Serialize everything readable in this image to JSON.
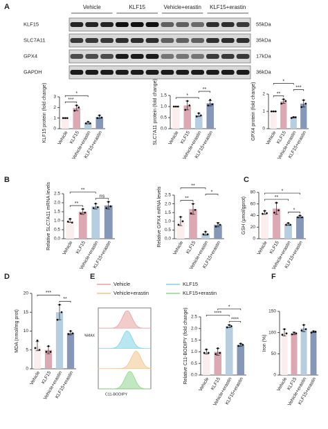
{
  "panel_labels": [
    "A",
    "B",
    "C",
    "D",
    "E",
    "F"
  ],
  "blot": {
    "groups": [
      "Vehicle",
      "KLF15",
      "Vehicle+erastin",
      "KLF15+erastin"
    ],
    "rows": [
      {
        "label": "KLF15",
        "size": "55kDa"
      },
      {
        "label": "SLC7A11",
        "size": "35kDa"
      },
      {
        "label": "GPX4",
        "size": "17kDa"
      },
      {
        "label": "GAPDH",
        "size": "36kDa"
      }
    ]
  },
  "flow": {
    "ylabel": "%MAX",
    "xlabel": "C11-BODIPY",
    "legend": [
      {
        "name": "Vehicle",
        "color": "#e8a0a0"
      },
      {
        "name": "KLF15",
        "color": "#7fd3e6"
      },
      {
        "name": "Vehicle+erastin",
        "color": "#f2c48a"
      },
      {
        "name": "KLF15+erastin",
        "color": "#8fd68f"
      }
    ]
  },
  "chart_data": [
    {
      "type": "bar",
      "ylabel": "KLF15 protein (fold change)",
      "categories": [
        "Vehicle",
        "KLF15",
        "Vehicle+erastin",
        "KLF15+erastin"
      ],
      "values": [
        1,
        1.95,
        0.55,
        1.1
      ],
      "errors": [
        0,
        0.25,
        0.1,
        0.15
      ],
      "points": [
        [
          1,
          1,
          1
        ],
        [
          1.7,
          2.2,
          2.0
        ],
        [
          0.5,
          0.65,
          0.5
        ],
        [
          1.0,
          1.25,
          1.05
        ]
      ],
      "colors": [
        "#fbeeee",
        "#dca8b4",
        "#b7cde0",
        "#8797b7"
      ],
      "ylim": [
        0,
        3
      ],
      "yticks": [
        0,
        1,
        2,
        3
      ],
      "significance": [
        {
          "from": "Vehicle",
          "to": "KLF15",
          "label": "***"
        },
        {
          "from": "Vehicle",
          "to": "Vehicle+erastin",
          "label": "*"
        }
      ]
    },
    {
      "type": "bar",
      "ylabel": "SLC7A11 protein (fold change)",
      "categories": [
        "Vehicle",
        "KLF15",
        "Vehicle+erastin",
        "KLF15+erastin"
      ],
      "values": [
        1,
        1.05,
        0.62,
        1.15
      ],
      "errors": [
        0,
        0.2,
        0.08,
        0.12
      ],
      "points": [
        [
          1,
          1,
          1
        ],
        [
          0.85,
          1.25,
          1.05
        ],
        [
          0.55,
          0.7,
          0.6
        ],
        [
          1.05,
          1.3,
          1.1
        ]
      ],
      "colors": [
        "#fbeeee",
        "#dca8b4",
        "#b7cde0",
        "#8797b7"
      ],
      "ylim": [
        0,
        1.5
      ],
      "yticks": [
        {
          "value": 0,
          "label": "0.0"
        },
        0.5,
        {
          "value": 1,
          "label": "1.0"
        },
        1.5
      ],
      "significance": [
        {
          "from": "Vehicle",
          "to": "Vehicle+erastin",
          "label": "*"
        },
        {
          "from": "Vehicle+erastin",
          "to": "KLF15+erastin",
          "label": "**"
        }
      ]
    },
    {
      "type": "bar",
      "ylabel": "GPX4 protein (fold change)",
      "categories": [
        "Vehicle",
        "KLF15",
        "Vehicle+erastin",
        "KLF15+erastin"
      ],
      "values": [
        1,
        1.58,
        0.65,
        1.45
      ],
      "errors": [
        0,
        0.12,
        0.03,
        0.2
      ],
      "points": [
        [
          1,
          1,
          1
        ],
        [
          1.45,
          1.7,
          1.6
        ],
        [
          0.62,
          0.67,
          0.66
        ],
        [
          1.25,
          1.65,
          1.45
        ]
      ],
      "colors": [
        "#fbeeee",
        "#dca8b4",
        "#b7cde0",
        "#8797b7"
      ],
      "ylim": [
        0,
        2
      ],
      "yticks": [
        0,
        1,
        2
      ],
      "significance": [
        {
          "from": "Vehicle",
          "to": "KLF15",
          "label": "**"
        },
        {
          "from": "Vehicle+erastin",
          "to": "KLF15+erastin",
          "label": "***"
        },
        {
          "from": "Vehicle",
          "to": "Vehicle+erastin",
          "label": "*"
        }
      ]
    },
    {
      "type": "bar",
      "ylabel": "Relative SLC7A11 mRNA levels",
      "categories": [
        "Vehicle",
        "KLF15",
        "Vehicle+erastin",
        "KLF15+erastin"
      ],
      "values": [
        1,
        1.5,
        1.8,
        1.85
      ],
      "errors": [
        0.1,
        0.15,
        0.15,
        0.2
      ],
      "points": [
        [
          0.95,
          1.1,
          0.9
        ],
        [
          1.4,
          1.65,
          1.45
        ],
        [
          1.7,
          1.95,
          1.75
        ],
        [
          1.7,
          2.05,
          1.8
        ]
      ],
      "colors": [
        "#fbeeee",
        "#dca8b4",
        "#b7cde0",
        "#8797b7"
      ],
      "ylim": [
        0,
        2.5
      ],
      "yticks": [
        {
          "value": 0,
          "label": "0.0"
        },
        0.5,
        {
          "value": 1,
          "label": "1.0"
        },
        1.5,
        {
          "value": 2,
          "label": "2.0"
        },
        2.5
      ],
      "significance": [
        {
          "from": "Vehicle",
          "to": "KLF15",
          "label": "**"
        },
        {
          "from": "Vehicle+erastin",
          "to": "KLF15+erastin",
          "label": "ns"
        },
        {
          "from": "Vehicle",
          "to": "Vehicle+erastin",
          "label": "**"
        }
      ]
    },
    {
      "type": "bar",
      "ylabel": "Relative GPX4 mRNA levels",
      "categories": [
        "Vehicle",
        "KLF15",
        "Vehicle+erastin",
        "KLF15+erastin"
      ],
      "values": [
        1,
        1.7,
        0.3,
        0.8
      ],
      "errors": [
        0.25,
        0.3,
        0.1,
        0.12
      ],
      "points": [
        [
          0.8,
          1.25,
          1.0
        ],
        [
          1.45,
          2.0,
          1.65
        ],
        [
          0.25,
          0.4,
          0.25
        ],
        [
          0.7,
          0.9,
          0.8
        ]
      ],
      "colors": [
        "#fbeeee",
        "#dca8b4",
        "#b7cde0",
        "#8797b7"
      ],
      "ylim": [
        0,
        2.5
      ],
      "yticks": [
        {
          "value": 0,
          "label": "0.0"
        },
        0.5,
        {
          "value": 1,
          "label": "1.0"
        },
        1.5,
        {
          "value": 2,
          "label": "2.0"
        },
        2.5
      ],
      "significance": [
        {
          "from": "Vehicle",
          "to": "KLF15",
          "label": "**"
        },
        {
          "from": "Vehicle+erastin",
          "to": "KLF15+erastin",
          "label": "*"
        },
        {
          "from": "Vehicle",
          "to": "Vehicle+erastin",
          "label": "**"
        }
      ]
    },
    {
      "type": "bar",
      "ylabel": "GSH (μmol/gprot)",
      "categories": [
        "Vehicle",
        "KLF15",
        "Vehicle+erastin",
        "KLF15+erastin"
      ],
      "values": [
        45,
        52,
        25,
        38
      ],
      "errors": [
        3,
        10,
        2,
        2
      ],
      "points": [
        [
          43,
          48,
          44
        ],
        [
          45,
          62,
          49
        ],
        [
          24,
          27,
          24
        ],
        [
          37,
          40,
          37
        ]
      ],
      "colors": [
        "#fbeeee",
        "#dca8b4",
        "#b7cde0",
        "#8797b7"
      ],
      "ylim": [
        0,
        80
      ],
      "yticks": [
        0,
        20,
        40,
        60,
        80
      ],
      "significance": [
        {
          "from": "Vehicle+erastin",
          "to": "KLF15+erastin",
          "label": "*"
        },
        {
          "from": "Vehicle",
          "to": "Vehicle+erastin",
          "label": "**"
        },
        {
          "from": "Vehicle",
          "to": "KLF15+erastin",
          "label": "*"
        }
      ]
    },
    {
      "type": "bar",
      "ylabel": "MDA (nmol/mg prot)",
      "categories": [
        "Vehicle",
        "KLF15",
        "Vehicle+erastin",
        "KLF15+erastin"
      ],
      "values": [
        6,
        5,
        15,
        9.5
      ],
      "errors": [
        1.2,
        1,
        2,
        0.5
      ],
      "points": [
        [
          5.5,
          7.5,
          5
        ],
        [
          4.5,
          6,
          4.5
        ],
        [
          13,
          17,
          15
        ],
        [
          9.2,
          10,
          9.4
        ]
      ],
      "colors": [
        "#fbeeee",
        "#dca8b4",
        "#b7cde0",
        "#8797b7"
      ],
      "ylim": [
        0,
        20
      ],
      "yticks": [
        0,
        5,
        10,
        15,
        20
      ],
      "significance": [
        {
          "from": "Vehicle+erastin",
          "to": "KLF15+erastin",
          "label": "**"
        },
        {
          "from": "Vehicle",
          "to": "Vehicle+erastin",
          "label": "***"
        }
      ]
    },
    {
      "type": "bar",
      "ylabel": "Relative C11-BODIPY (fold change)",
      "categories": [
        "Vehicle",
        "KLF15",
        "Vehicle+erastin",
        "KLF15+erastin"
      ],
      "values": [
        1,
        1,
        2.1,
        1.3
      ],
      "errors": [
        0.1,
        0.15,
        0.06,
        0.06
      ],
      "points": [
        [
          0.95,
          1.1,
          0.95
        ],
        [
          0.9,
          1.15,
          0.95
        ],
        [
          2.05,
          2.15,
          2.1
        ],
        [
          1.25,
          1.35,
          1.3
        ]
      ],
      "colors": [
        "#fbeeee",
        "#dca8b4",
        "#b7cde0",
        "#8797b7"
      ],
      "ylim": [
        0,
        2.5
      ],
      "yticks": [
        {
          "value": 0,
          "label": "0.0"
        },
        0.5,
        {
          "value": 1,
          "label": "1.0"
        },
        1.5,
        {
          "value": 2,
          "label": "2.0"
        },
        2.5
      ],
      "significance": [
        {
          "from": "Vehicle+erastin",
          "to": "KLF15+erastin",
          "label": "****"
        },
        {
          "from": "Vehicle",
          "to": "Vehicle+erastin",
          "label": "****"
        },
        {
          "from": "KLF15",
          "to": "KLF15+erastin",
          "label": "*"
        }
      ]
    },
    {
      "type": "bar",
      "ylabel": "Iron (%)",
      "categories": [
        "Vehicle",
        "KLF15",
        "Vehicle+erastin",
        "KLF15+erastin"
      ],
      "values": [
        100,
        98,
        110,
        102
      ],
      "errors": [
        8,
        3,
        8,
        2
      ],
      "points": [
        [
          95,
          108,
          98
        ],
        [
          96,
          100,
          98
        ],
        [
          105,
          118,
          108
        ],
        [
          100,
          103,
          102
        ]
      ],
      "colors": [
        "#fbeeee",
        "#dca8b4",
        "#b7cde0",
        "#8797b7"
      ],
      "ylim": [
        0,
        150
      ],
      "yticks": [
        0,
        50,
        100,
        150
      ],
      "significance": []
    }
  ]
}
